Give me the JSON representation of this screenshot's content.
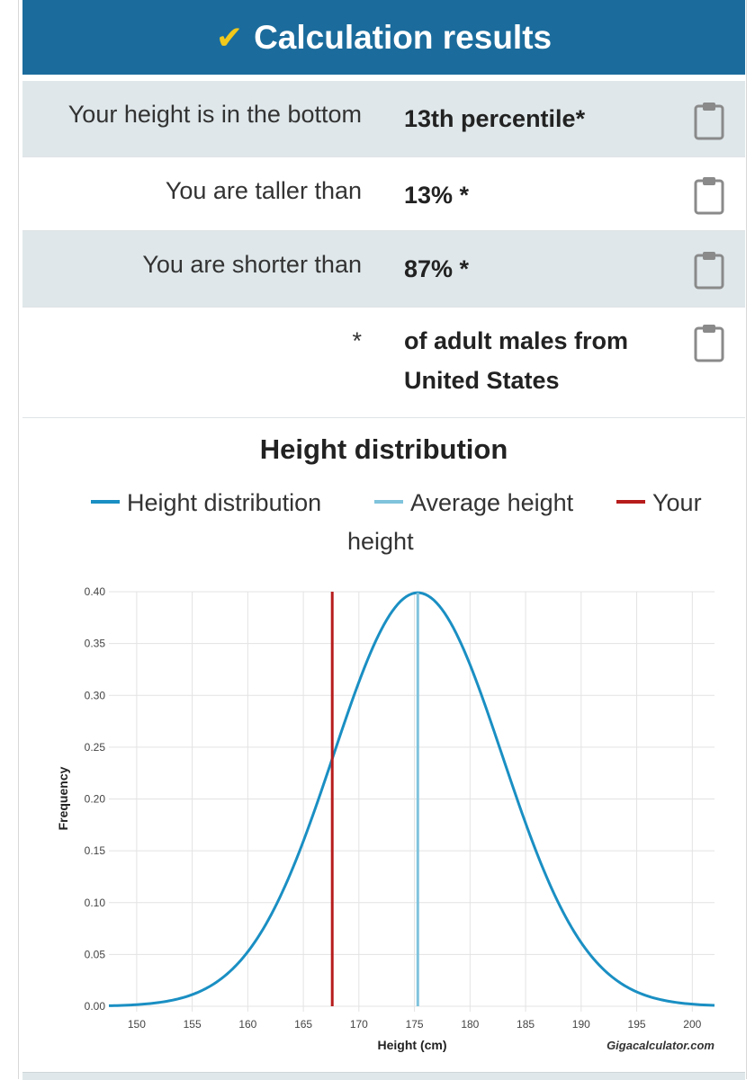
{
  "header": {
    "title": "Calculation results",
    "check_icon": "check-icon"
  },
  "results": [
    {
      "label": "Your height is in the bottom",
      "value": "13th percentile*"
    },
    {
      "label": "You are taller than",
      "value": "13% *"
    },
    {
      "label": "You are shorter than",
      "value": "87% *"
    },
    {
      "label": "*",
      "value_line1": "of adult males from",
      "value_line2": "United States"
    }
  ],
  "colors": {
    "header_bg": "#1b6c9c",
    "check": "#f2c81b",
    "distribution": "#1a8fc3",
    "average": "#7fc3dc",
    "your_height": "#b71c1c"
  },
  "chart_data": {
    "type": "line",
    "title": "Height distribution",
    "xlabel": "Height (cm)",
    "ylabel": "Frequency",
    "watermark": "Gigacalculator.com",
    "xlim": [
      147.5,
      202
    ],
    "ylim": [
      0,
      0.4
    ],
    "x_ticks": [
      150,
      155,
      160,
      165,
      170,
      175,
      180,
      185,
      190,
      195,
      200
    ],
    "y_ticks": [
      0.0,
      0.05,
      0.1,
      0.15,
      0.2,
      0.25,
      0.3,
      0.35,
      0.4
    ],
    "y_tick_labels": [
      "0.00",
      "0.05",
      "0.10",
      "0.15",
      "0.20",
      "0.25",
      "0.30",
      "0.35",
      "0.40"
    ],
    "grid": true,
    "legend": [
      {
        "name": "Height distribution",
        "color": "#1a8fc3"
      },
      {
        "name": "Average height",
        "color": "#7fc3dc"
      },
      {
        "name": "Your height",
        "line1": "Your",
        "line2": "height",
        "color": "#b71c1c"
      }
    ],
    "series": [
      {
        "name": "Height distribution",
        "x": [
          147.5,
          150,
          152.5,
          155,
          157.5,
          160,
          162.5,
          165,
          167.5,
          170,
          172.5,
          175.3,
          178,
          180.5,
          183,
          185.5,
          188,
          190.5,
          193,
          195.5,
          198,
          200.5,
          202
        ],
        "y": [
          0.0,
          0.001,
          0.002,
          0.006,
          0.015,
          0.034,
          0.067,
          0.117,
          0.192,
          0.274,
          0.355,
          0.399,
          0.36,
          0.283,
          0.19,
          0.111,
          0.056,
          0.024,
          0.009,
          0.003,
          0.001,
          0.0,
          0.0
        ]
      }
    ],
    "average_height": 175.3,
    "your_height": 167.6
  }
}
